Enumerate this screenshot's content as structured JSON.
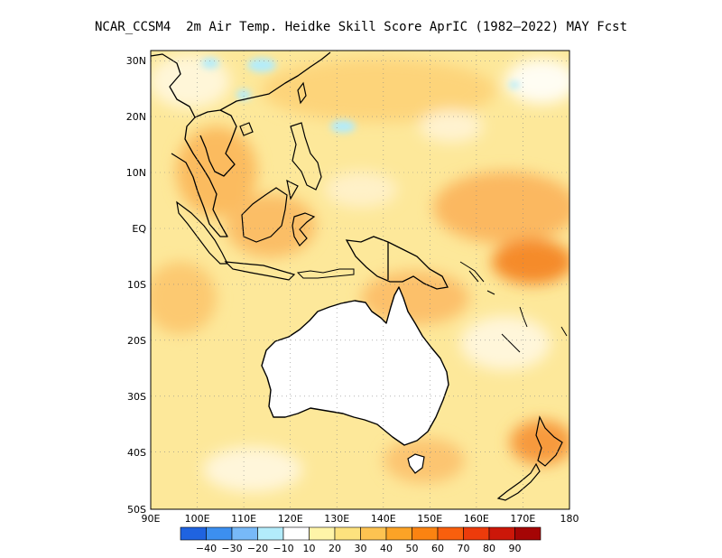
{
  "title": "NCAR_CCSM4  2m Air Temp. Heidke Skill Score AprIC (1982–2022) MAY Fcst",
  "map": {
    "lon_range": [
      90,
      180
    ],
    "lat_range": [
      -50,
      32
    ],
    "x_ticks": [
      "90E",
      "100E",
      "110E",
      "120E",
      "130E",
      "140E",
      "150E",
      "160E",
      "170E",
      "180"
    ],
    "y_ticks": [
      "30N",
      "20N",
      "10N",
      "EQ",
      "10S",
      "20S",
      "30S",
      "40S",
      "50S"
    ],
    "grid": "dotted"
  },
  "colorbar": {
    "colors": [
      "#1f63e0",
      "#3c8ff0",
      "#77b9f8",
      "#b3ecfb",
      "#ffffff",
      "#fff4a8",
      "#fde27e",
      "#fdc351",
      "#fca326",
      "#fb8311",
      "#f95f0d",
      "#ed3b0b",
      "#cc1709",
      "#a50505"
    ],
    "labels": [
      "−40",
      "−30",
      "−20",
      "−10",
      "10",
      "20",
      "30",
      "40",
      "50",
      "60",
      "70",
      "80",
      "90"
    ]
  }
}
